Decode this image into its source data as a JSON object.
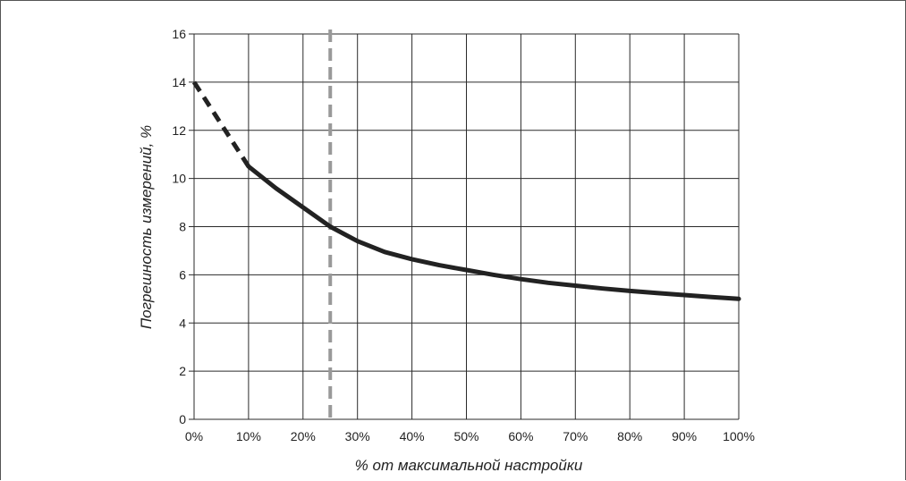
{
  "chart_data": {
    "type": "line",
    "xlabel": "% от максимальной настройки",
    "ylabel": "Погрешность измерений, %",
    "xlim": [
      0,
      100
    ],
    "ylim": [
      0,
      16
    ],
    "x_ticks": [
      "0%",
      "10%",
      "20%",
      "30%",
      "40%",
      "50%",
      "60%",
      "70%",
      "80%",
      "90%",
      "100%"
    ],
    "y_ticks": [
      "0",
      "2",
      "4",
      "6",
      "8",
      "10",
      "12",
      "14",
      "16"
    ],
    "x_tick_values": [
      0,
      10,
      20,
      30,
      40,
      50,
      60,
      70,
      80,
      90,
      100
    ],
    "y_tick_values": [
      0,
      2,
      4,
      6,
      8,
      10,
      12,
      14,
      16
    ],
    "grid": true,
    "series": [
      {
        "style": "dashed",
        "color": "#222222",
        "x": [
          0,
          2,
          4,
          6,
          8,
          10
        ],
        "y": [
          14,
          13.3,
          12.6,
          11.9,
          11.2,
          10.5
        ]
      },
      {
        "style": "solid",
        "color": "#222222",
        "x": [
          10,
          15,
          20,
          25,
          30,
          35,
          40,
          45,
          50,
          55,
          60,
          65,
          70,
          75,
          80,
          85,
          90,
          95,
          100
        ],
        "y": [
          10.5,
          9.6,
          8.8,
          8.0,
          7.4,
          6.95,
          6.65,
          6.4,
          6.2,
          6.0,
          5.82,
          5.67,
          5.55,
          5.43,
          5.33,
          5.24,
          5.16,
          5.08,
          5.0
        ]
      }
    ],
    "reference_line": {
      "axis": "x",
      "value": 25,
      "style": "dashed",
      "color": "#999999"
    }
  }
}
